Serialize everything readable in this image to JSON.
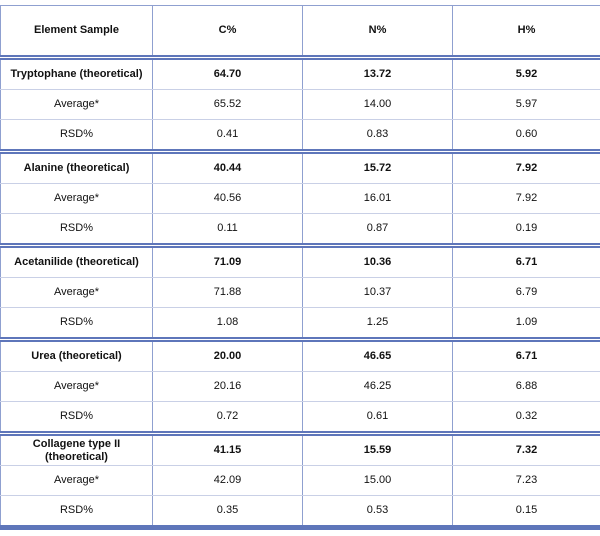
{
  "table": {
    "header": [
      "Element Sample",
      "C%",
      "N%",
      "H%"
    ],
    "groups": [
      {
        "rows": [
          [
            "Tryptophane (theoretical)",
            "64.70",
            "13.72",
            "5.92"
          ],
          [
            "Average*",
            "65.52",
            "14.00",
            "5.97"
          ],
          [
            "RSD%",
            "0.41",
            "0.83",
            "0.60"
          ]
        ]
      },
      {
        "rows": [
          [
            "Alanine (theoretical)",
            "40.44",
            "15.72",
            "7.92"
          ],
          [
            "Average*",
            "40.56",
            "16.01",
            "7.92"
          ],
          [
            "RSD%",
            "0.11",
            "0.87",
            "0.19"
          ]
        ]
      },
      {
        "rows": [
          [
            "Acetanilide (theoretical)",
            "71.09",
            "10.36",
            "6.71"
          ],
          [
            "Average*",
            "71.88",
            "10.37",
            "6.79"
          ],
          [
            "RSD%",
            "1.08",
            "1.25",
            "1.09"
          ]
        ]
      },
      {
        "rows": [
          [
            "Urea (theoretical)",
            "20.00",
            "46.65",
            "6.71"
          ],
          [
            "Average*",
            "20.16",
            "46.25",
            "6.88"
          ],
          [
            "RSD%",
            "0.72",
            "0.61",
            "0.32"
          ]
        ]
      },
      {
        "rows": [
          [
            "Collagene type II (theoretical)",
            "41.15",
            "15.59",
            "7.32"
          ],
          [
            "Average*",
            "42.09",
            "15.00",
            "7.23"
          ],
          [
            "RSD%",
            "0.35",
            "0.53",
            "0.15"
          ]
        ]
      }
    ]
  }
}
